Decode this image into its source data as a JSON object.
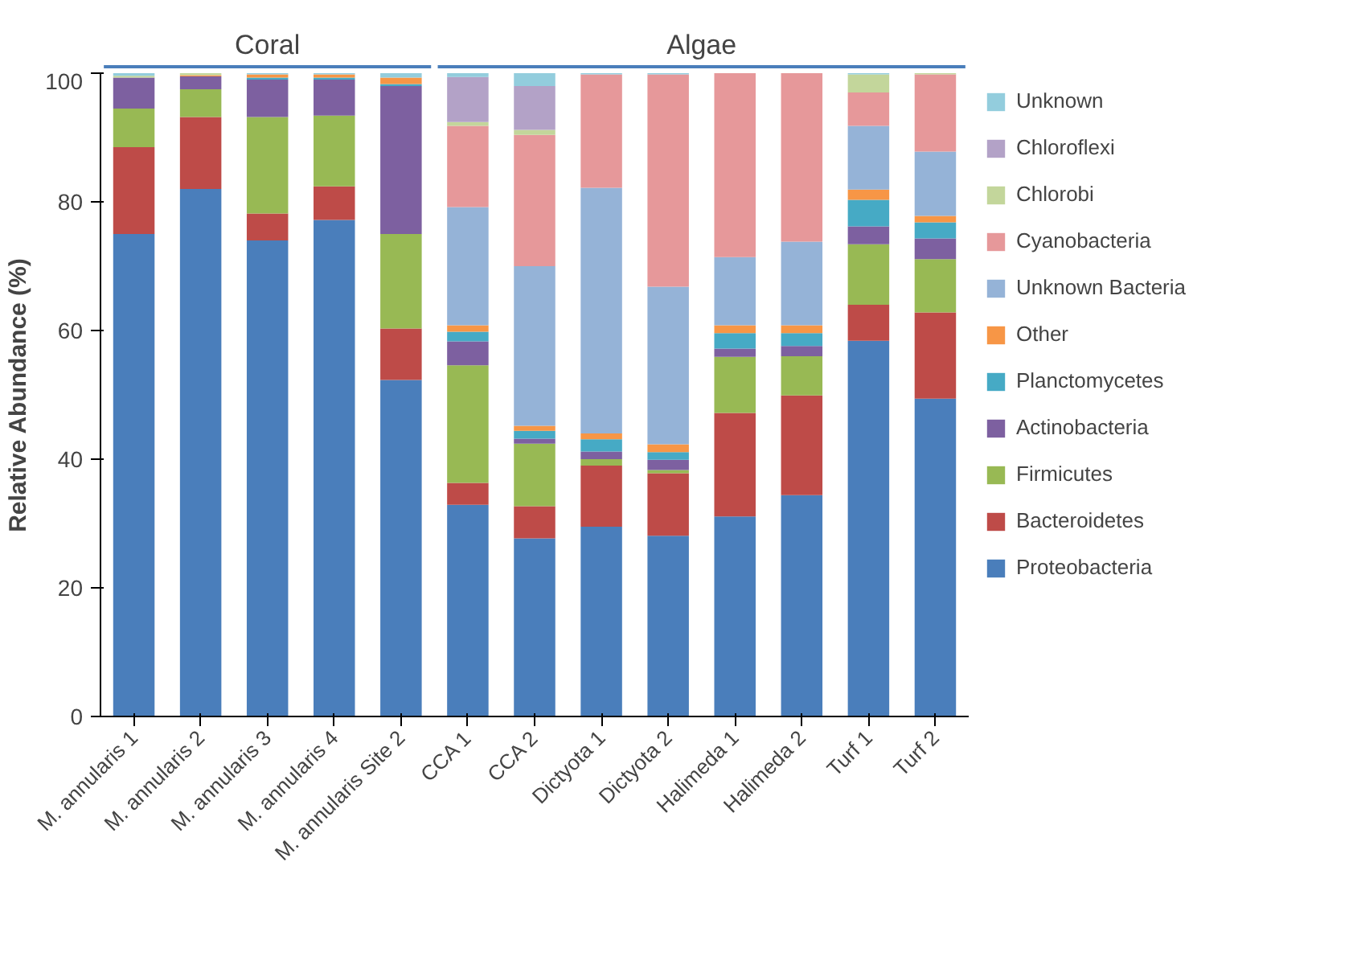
{
  "chart_data": {
    "type": "bar",
    "stacked": true,
    "ylabel": "Relative Abundance (%)",
    "categories": [
      "M. annularis 1",
      "M. annularis 2",
      "M. annularis 3",
      "M. annularis 4",
      "M. annularis Site 2",
      "CCA 1",
      "CCA 2",
      "Dictyota 1",
      "Dictyota 2",
      "Halimeda 1",
      "Halimeda 2",
      "Turf 1",
      "Turf 2"
    ],
    "ylim": [
      0,
      100
    ],
    "yticks": [
      0,
      20,
      40,
      60,
      80,
      100
    ],
    "grid": false,
    "legend": "right",
    "annotations": [
      "Coral",
      "Algae"
    ],
    "series": [
      {
        "name": "Proteobacteria",
        "color": "#4a7ebb",
        "values": [
          75,
          82,
          74,
          77.2,
          52.3,
          32.9,
          27.7,
          29.5,
          28.1,
          31.1,
          34.4,
          58.4,
          49.4
        ]
      },
      {
        "name": "Bacteroidetes",
        "color": "#be4b48",
        "values": [
          13.5,
          11.2,
          4.2,
          5.2,
          8.0,
          3.4,
          5.0,
          9.5,
          9.7,
          16.1,
          15.5,
          5.6,
          13.4
        ]
      },
      {
        "name": "Firmicutes",
        "color": "#98b954",
        "values": [
          6,
          4.3,
          15,
          11.0,
          14.7,
          18.3,
          9.7,
          1.0,
          0.5,
          8.7,
          6.1,
          9.4,
          8.3
        ]
      },
      {
        "name": "Actinobacteria",
        "color": "#7d60a0",
        "values": [
          4.8,
          2.0,
          5.8,
          5.6,
          23,
          3.7,
          0.8,
          1.2,
          1.6,
          1.3,
          1.6,
          2.8,
          3.2
        ]
      },
      {
        "name": "Planctomycetes",
        "color": "#46aac5",
        "values": [
          0,
          0,
          0.3,
          0.3,
          0.3,
          1.5,
          1.2,
          1.9,
          1.2,
          2.4,
          2.0,
          4.1,
          2.5
        ]
      },
      {
        "name": "Other",
        "color": "#f79646",
        "values": [
          0,
          0.2,
          0.5,
          0.5,
          1.0,
          1.0,
          0.8,
          0.9,
          1.2,
          1.2,
          1.2,
          1.6,
          1.0
        ]
      },
      {
        "name": "Unknown Bacteria",
        "color": "#95b3d7",
        "values": [
          0,
          0,
          0,
          0,
          0,
          18.4,
          24.8,
          38.2,
          24.5,
          10.6,
          13.0,
          9.9,
          10.0
        ]
      },
      {
        "name": "Cyanobacteria",
        "color": "#e6989a",
        "values": [
          0,
          0,
          0,
          0,
          0,
          12.6,
          20.4,
          17.6,
          33.0,
          28.6,
          26.3,
          5.2,
          12.0
        ]
      },
      {
        "name": "Chlorobi",
        "color": "#c3d69b",
        "values": [
          0.3,
          0.3,
          0,
          0,
          0,
          0.6,
          0.8,
          0,
          0,
          0,
          0,
          2.8,
          0.2
        ]
      },
      {
        "name": "Chloroflexi",
        "color": "#b3a2c7",
        "values": [
          0,
          0,
          0,
          0,
          0,
          7.0,
          6.8,
          0,
          0,
          0,
          0,
          0,
          0
        ]
      },
      {
        "name": "Unknown",
        "color": "#93cddd",
        "values": [
          0.4,
          0,
          0.2,
          0.2,
          0.7,
          0.6,
          2.0,
          0.2,
          0.2,
          0,
          0,
          0.2,
          0
        ]
      }
    ]
  }
}
